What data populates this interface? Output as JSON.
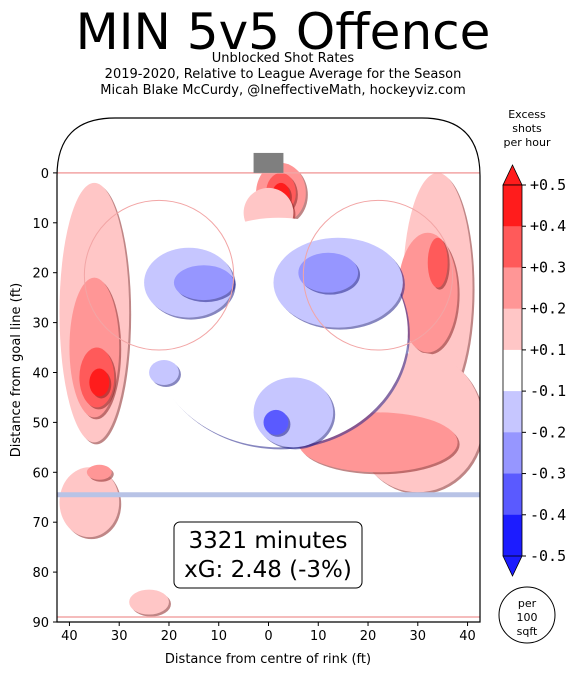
{
  "title": "MIN 5v5 Offence",
  "subtitle_lines": [
    "Unblocked Shot Rates",
    "2019-2020, Relative to League Average for the Season",
    "Micah Blake McCurdy, @IneffectiveMath, hockeyviz.com"
  ],
  "chart_data": {
    "type": "heatmap",
    "xlabel": "Distance from centre of rink (ft)",
    "ylabel": "Distance from goal line (ft)",
    "x_ticks": [
      "40",
      "30",
      "20",
      "10",
      "0",
      "10",
      "20",
      "30",
      "40"
    ],
    "x_tick_values": [
      -40,
      -30,
      -20,
      -10,
      0,
      10,
      20,
      30,
      40
    ],
    "y_ticks": [
      "0",
      "10",
      "20",
      "30",
      "40",
      "50",
      "60",
      "70",
      "80",
      "90"
    ],
    "y_tick_values": [
      0,
      10,
      20,
      30,
      40,
      50,
      60,
      70,
      80,
      90
    ],
    "xlim": [
      -42.5,
      42.5
    ],
    "ylim": [
      -11,
      90
    ],
    "annotation_lines": [
      "3321 minutes",
      "xG: 2.48 (-3%)"
    ],
    "colorbar": {
      "title_lines": [
        "Excess",
        "shots",
        "per hour"
      ],
      "tick_labels": [
        "+0.5",
        "+0.4",
        "+0.3",
        "+0.2",
        "+0.1",
        "-0.1",
        "-0.2",
        "-0.3",
        "-0.4",
        "-0.5"
      ],
      "levels": [
        0.5,
        0.4,
        0.3,
        0.2,
        0.1,
        -0.1,
        -0.2,
        -0.3,
        -0.4,
        -0.5
      ],
      "colors": [
        "#ff1c1c",
        "#ff5a5a",
        "#ff9696",
        "#ffc6c6",
        "#ffffff",
        "#c6c6ff",
        "#9696ff",
        "#5a5aff",
        "#1c1cff"
      ],
      "extend_max_color": "#ff1c1c",
      "extend_min_color": "#1c1cff"
    },
    "unit_circle_lines": [
      "per",
      "100",
      "sqft"
    ],
    "regions": [
      {
        "x": 2.5,
        "y": 4,
        "rx": 5,
        "ry": 6,
        "level": 0.2
      },
      {
        "x": 2.5,
        "y": 4,
        "rx": 3,
        "ry": 4,
        "level": 0.3
      },
      {
        "x": 2.5,
        "y": 4.5,
        "rx": 1.8,
        "ry": 2.5,
        "level": 0.4
      },
      {
        "x": -35,
        "y": 28,
        "rx": 7,
        "ry": 26,
        "level": 0.1
      },
      {
        "x": -35,
        "y": 35,
        "rx": 5,
        "ry": 14,
        "level": 0.2
      },
      {
        "x": -34.5,
        "y": 41,
        "rx": 3.5,
        "ry": 6,
        "level": 0.3
      },
      {
        "x": -34,
        "y": 42,
        "rx": 2,
        "ry": 2.8,
        "level": 0.5
      },
      {
        "x": 34,
        "y": 23,
        "rx": 7,
        "ry": 23,
        "level": 0.1
      },
      {
        "x": 32,
        "y": 24,
        "rx": 6,
        "ry": 12,
        "level": 0.2
      },
      {
        "x": 34,
        "y": 18,
        "rx": 2,
        "ry": 5,
        "level": 0.3
      },
      {
        "x": 30,
        "y": 50,
        "rx": 13,
        "ry": 14,
        "level": 0.1
      },
      {
        "x": 22,
        "y": 54,
        "rx": 16,
        "ry": 6,
        "level": 0.2
      },
      {
        "x": -36,
        "y": 66,
        "rx": 6,
        "ry": 7,
        "level": 0.1
      },
      {
        "x": -34,
        "y": 60,
        "rx": 2.5,
        "ry": 1.5,
        "level": 0.2
      },
      {
        "x": -24,
        "y": 86,
        "rx": 4,
        "ry": 2.5,
        "level": 0.1
      },
      {
        "x": 0,
        "y": 8,
        "rx": 5,
        "ry": 5,
        "level": 0.1
      },
      {
        "x": -22,
        "y": 19.5,
        "rx": 0.9,
        "ry": 0.9,
        "level": 0.2
      },
      {
        "x": 22,
        "y": 19.5,
        "rx": 0.9,
        "ry": 0.9,
        "level": 0.2
      },
      {
        "x": 2,
        "y": 32,
        "rx": 26,
        "ry": 23,
        "level": -0.1
      },
      {
        "x": -16,
        "y": 22,
        "rx": 9,
        "ry": 7,
        "level": -0.2
      },
      {
        "x": -13,
        "y": 22,
        "rx": 6,
        "ry": 3.5,
        "level": -0.3
      },
      {
        "x": 14,
        "y": 22,
        "rx": 13,
        "ry": 9,
        "level": -0.2
      },
      {
        "x": 12,
        "y": 20,
        "rx": 6,
        "ry": 4,
        "level": -0.3
      },
      {
        "x": 5,
        "y": 48,
        "rx": 8,
        "ry": 7,
        "level": -0.2
      },
      {
        "x": 1.5,
        "y": 50,
        "rx": 2.5,
        "ry": 2.5,
        "level": -0.4
      },
      {
        "x": -21,
        "y": 40,
        "rx": 3,
        "ry": 2.5,
        "level": -0.2
      }
    ]
  }
}
